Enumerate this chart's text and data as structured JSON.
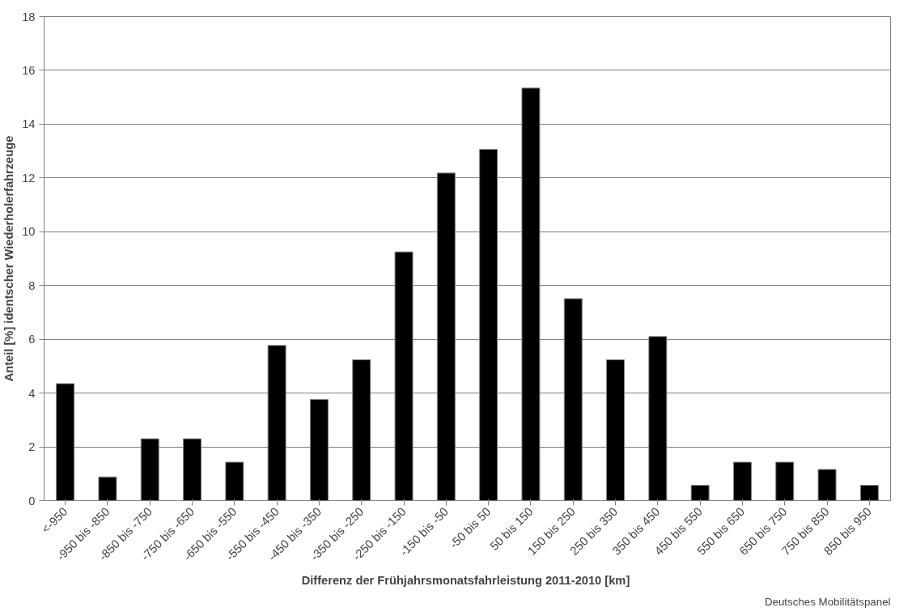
{
  "chart_data": {
    "type": "bar",
    "categories": [
      "<-950",
      "-950 bis -850",
      "-850 bis -750",
      "-750 bis -650",
      "-650 bis -550",
      "-550 bis -450",
      "-450 bis -350",
      "-350 bis -250",
      "-250 bis -150",
      "-150 bis -50",
      "-50 bis 50",
      "50 bis 150",
      "150 bis 250",
      "250 bis 350",
      "350 bis 450",
      "450 bis 550",
      "550 bis 650",
      "650 bis 750",
      "750 bis 850",
      "850 bis 950"
    ],
    "values": [
      4.35,
      0.88,
      2.3,
      2.3,
      1.43,
      5.77,
      3.76,
      5.24,
      9.25,
      12.18,
      13.06,
      15.34,
      7.51,
      5.24,
      6.1,
      0.57,
      1.43,
      1.43,
      1.16,
      0.57
    ],
    "color": "#000000",
    "xlabel": "Differenz der Frühjahrsmonatsfahrleistung  2011-2010 [km]",
    "ylabel": "Anteil [%] identscher Wiederholerfahrzeuge",
    "ylim": [
      0,
      18
    ],
    "yticks": [
      0,
      2,
      4,
      6,
      8,
      10,
      12,
      14,
      16,
      18
    ],
    "grid": "y",
    "annotations": [
      "Deutsches Mobilitätspanel"
    ]
  }
}
